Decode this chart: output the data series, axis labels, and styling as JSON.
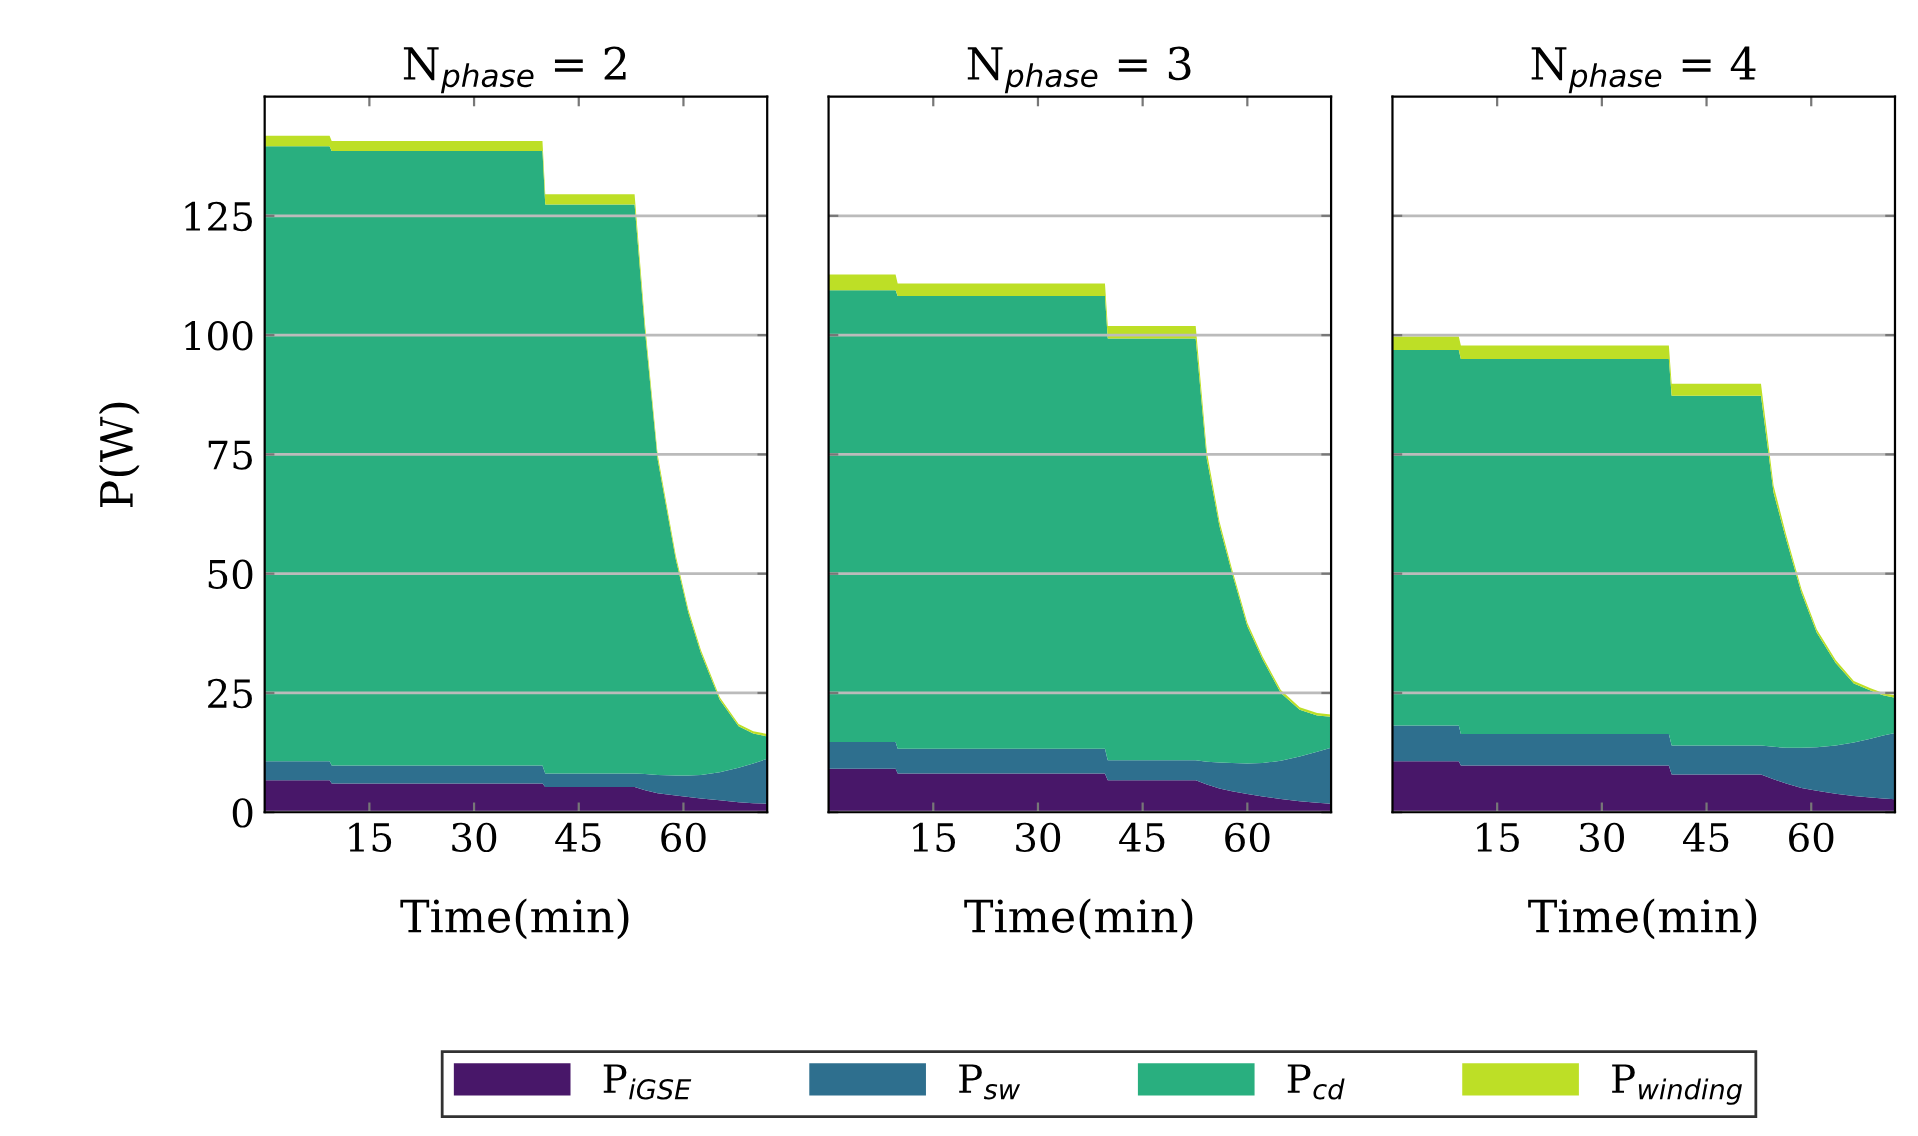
{
  "chart_data": [
    {
      "type": "area",
      "stacked": true,
      "title": "N$_{phase}$ = 2",
      "xlabel": "Time(min)",
      "ylabel": "P(W)",
      "xlim": [
        0,
        72
      ],
      "ylim": [
        0,
        150
      ],
      "xticks": [
        15,
        30,
        45,
        60
      ],
      "yticks": [
        0,
        25,
        50,
        75,
        100,
        125
      ],
      "grid": "y",
      "legend": "bottom",
      "x": [
        0,
        9.3,
        9.6,
        39.8,
        40.2,
        53,
        54.5,
        56.3,
        58.9,
        60.7,
        62.5,
        65.2,
        67.9,
        70,
        72
      ],
      "series": [
        {
          "name": "P$_{iGSE}$",
          "color": "#481769",
          "values": [
            6.7,
            6.7,
            6.0,
            6.0,
            5.3,
            5.3,
            4.6,
            4.0,
            3.5,
            3.2,
            2.9,
            2.5,
            2.1,
            1.9,
            1.8
          ]
        },
        {
          "name": "P$_{sw}$",
          "color": "#2e6f8e",
          "values": [
            4.0,
            4.0,
            3.8,
            3.8,
            2.8,
            2.8,
            3.4,
            3.8,
            4.2,
            4.5,
            4.9,
            5.9,
            7.2,
            8.3,
            9.4
          ]
        },
        {
          "name": "P$_{cd}$",
          "color": "#29af7f",
          "values": [
            128.9,
            128.9,
            128.8,
            128.8,
            119.3,
            119.3,
            92.7,
            66.2,
            45.3,
            34.1,
            25.6,
            15.2,
            8.7,
            6.3,
            4.7
          ]
        },
        {
          "name": "P$_{winding}$",
          "color": "#bddf26",
          "values": [
            2.2,
            2.2,
            2.1,
            2.1,
            2.1,
            2.1,
            1.5,
            1.0,
            0.8,
            0.7,
            0.6,
            0.5,
            0.5,
            0.5,
            0.5
          ]
        }
      ]
    },
    {
      "type": "area",
      "stacked": true,
      "title": "N$_{phase}$ = 3",
      "xlabel": "Time(min)",
      "xlim": [
        0,
        72
      ],
      "ylim": [
        0,
        150
      ],
      "xticks": [
        15,
        30,
        45,
        60
      ],
      "yticks": [
        0,
        25,
        50,
        75,
        100,
        125
      ],
      "grid": "y",
      "tick_labels": "x",
      "x": [
        0,
        9.6,
        9.9,
        39.6,
        40,
        52.6,
        54.2,
        56,
        57.8,
        60,
        62.2,
        64.8,
        67.5,
        70,
        72
      ],
      "series": [
        {
          "color": "#481769",
          "values": [
            9.1,
            9.1,
            8.1,
            8.1,
            6.7,
            6.7,
            5.8,
            5.0,
            4.4,
            3.8,
            3.3,
            2.8,
            2.3,
            2.0,
            1.8
          ]
        },
        {
          "color": "#2e6f8e",
          "values": [
            5.6,
            5.6,
            5.2,
            5.2,
            4.2,
            4.2,
            4.8,
            5.4,
            5.9,
            6.4,
            7.0,
            8.0,
            9.4,
            10.7,
            11.7
          ]
        },
        {
          "color": "#29af7f",
          "values": [
            94.7,
            94.7,
            94.9,
            94.9,
            88.4,
            88.4,
            63.4,
            49.6,
            39.9,
            28.8,
            21.7,
            14.2,
            9.8,
            7.6,
            6.5
          ]
        },
        {
          "color": "#bddf26",
          "values": [
            3.3,
            3.3,
            2.6,
            2.6,
            2.6,
            2.6,
            1.5,
            1.0,
            0.8,
            0.7,
            0.6,
            0.6,
            0.5,
            0.5,
            0.5
          ]
        }
      ]
    },
    {
      "type": "area",
      "stacked": true,
      "title": "N$_{phase}$ = 4",
      "xlabel": "Time(min)",
      "xlim": [
        0,
        72
      ],
      "ylim": [
        0,
        150
      ],
      "xticks": [
        15,
        30,
        45,
        60
      ],
      "yticks": [
        0,
        25,
        50,
        75,
        100,
        125
      ],
      "grid": "y",
      "tick_labels": "x",
      "x": [
        0,
        9.5,
        9.8,
        39.6,
        40,
        52.8,
        54.6,
        56.4,
        58.6,
        60.8,
        63.5,
        66.1,
        68.5,
        70.3,
        72
      ],
      "series": [
        {
          "color": "#481769",
          "values": [
            10.7,
            10.7,
            9.8,
            9.8,
            7.9,
            7.9,
            6.9,
            6.0,
            5.1,
            4.5,
            3.9,
            3.4,
            3.1,
            2.9,
            2.7
          ]
        },
        {
          "color": "#2e6f8e",
          "values": [
            7.5,
            7.5,
            6.6,
            6.6,
            6.1,
            6.1,
            6.8,
            7.5,
            8.4,
            9.1,
            10.1,
            11.2,
            12.3,
            13.2,
            13.9
          ]
        },
        {
          "color": "#29af7f",
          "values": [
            78.7,
            78.7,
            78.6,
            78.6,
            73.3,
            73.3,
            53.3,
            43.7,
            32.5,
            24.0,
            17.3,
            12.4,
            10.1,
            8.4,
            7.4
          ]
        },
        {
          "color": "#bddf26",
          "values": [
            2.8,
            2.8,
            2.8,
            2.8,
            2.5,
            2.5,
            1.5,
            1.0,
            0.8,
            0.7,
            0.6,
            0.5,
            0.5,
            0.5,
            0.5
          ]
        }
      ]
    }
  ]
}
